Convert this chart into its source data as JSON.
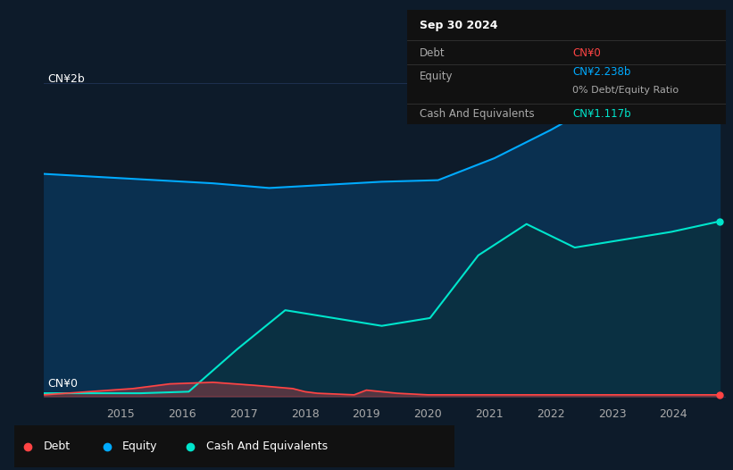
{
  "background_color": "#0d1b2a",
  "plot_bg_color": "#0d1b2a",
  "ylabel_2b": "CN¥2b",
  "ylabel_0": "CN¥0",
  "equity_color": "#00aaff",
  "equity_fill": "#0a3050",
  "cash_color": "#00e5cc",
  "cash_fill": "#0a3040",
  "debt_color": "#ff4444",
  "grid_color": "#1e3050",
  "annotation": {
    "date": "Sep 30 2024",
    "debt_label": "Debt",
    "debt_value": "CN¥0",
    "equity_label": "Equity",
    "equity_value": "CN¥2.238b",
    "ratio_label": "0% Debt/Equity Ratio",
    "cash_label": "Cash And Equivalents",
    "cash_value": "CN¥1.117b"
  },
  "equity_data": [
    1.42,
    1.4,
    1.38,
    1.36,
    1.33,
    1.35,
    1.37,
    1.38,
    1.52,
    1.7,
    1.9,
    2.1,
    2.238
  ],
  "cash_data": [
    0.02,
    0.02,
    0.02,
    0.03,
    0.3,
    0.55,
    0.5,
    0.45,
    0.5,
    0.9,
    1.1,
    0.95,
    1.0,
    1.05,
    1.117
  ],
  "debt_data_x": [
    2013.75,
    2015.2,
    2015.8,
    2016.5,
    2017.2,
    2017.8,
    2018.0,
    2018.2,
    2018.8,
    2019.0,
    2019.5,
    2020.0,
    2021.0,
    2022.0,
    2023.0,
    2024.75
  ],
  "debt_data_y": [
    0.01,
    0.05,
    0.08,
    0.09,
    0.07,
    0.05,
    0.03,
    0.02,
    0.01,
    0.04,
    0.02,
    0.01,
    0.01,
    0.01,
    0.01,
    0.01
  ]
}
